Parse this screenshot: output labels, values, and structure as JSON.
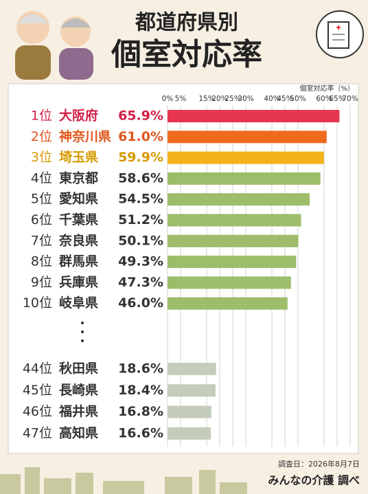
{
  "chart_data": {
    "type": "bar",
    "title": "都道府県別",
    "subtitle": "個室対応率",
    "x_label": "個室対応率（%）",
    "ranks": [
      "1位",
      "2位",
      "3位",
      "4位",
      "5位",
      "6位",
      "7位",
      "8位",
      "9位",
      "10位",
      "44位",
      "45位",
      "46位",
      "47位"
    ],
    "categories": [
      "大阪府",
      "神奈川県",
      "埼玉県",
      "東京都",
      "愛知県",
      "千葉県",
      "奈良県",
      "群馬県",
      "兵庫県",
      "岐阜県",
      "秋田県",
      "長崎県",
      "福井県",
      "高知県"
    ],
    "values": [
      65.9,
      61.0,
      59.9,
      58.6,
      54.5,
      51.2,
      50.1,
      49.3,
      47.3,
      46.0,
      18.6,
      18.4,
      16.8,
      16.6
    ],
    "value_labels": [
      "65.9%",
      "61.0%",
      "59.9%",
      "58.6%",
      "54.5%",
      "51.2%",
      "50.1%",
      "49.3%",
      "47.3%",
      "46.0%",
      "18.6%",
      "18.4%",
      "16.8%",
      "16.6%"
    ],
    "colors": [
      "#e6364f",
      "#f06a1e",
      "#f2b21a",
      "#9dbd6a",
      "#9dbd6a",
      "#9dbd6a",
      "#9dbd6a",
      "#9dbd6a",
      "#9dbd6a",
      "#9dbd6a",
      "#c4cdbb",
      "#c4cdbb",
      "#c4cdbb",
      "#c4cdbb"
    ],
    "text_colors": [
      "#d21f45",
      "#e0561c",
      "#d69a00",
      "#333333",
      "#333333",
      "#333333",
      "#333333",
      "#333333",
      "#333333",
      "#333333",
      "#333333",
      "#333333",
      "#333333",
      "#333333"
    ],
    "xlim": [
      0,
      70
    ],
    "xticks": [
      {
        "value": 0,
        "label": "0%"
      },
      {
        "value": 5,
        "label": "5%"
      },
      {
        "value": 15,
        "label": "15%"
      },
      {
        "value": 20,
        "label": "20%"
      },
      {
        "value": 25,
        "label": "25%"
      },
      {
        "value": 30,
        "label": "30%"
      },
      {
        "value": 40,
        "label": "40%"
      },
      {
        "value": 45,
        "label": "45%"
      },
      {
        "value": 50,
        "label": "50%"
      },
      {
        "value": 60,
        "label": "60%"
      },
      {
        "value": 65,
        "label": "65%"
      },
      {
        "value": 70,
        "label": "70%"
      }
    ],
    "grid": true,
    "survey_date": "調査日：2026年8月7日",
    "source": "みんなの介護 調べ"
  }
}
